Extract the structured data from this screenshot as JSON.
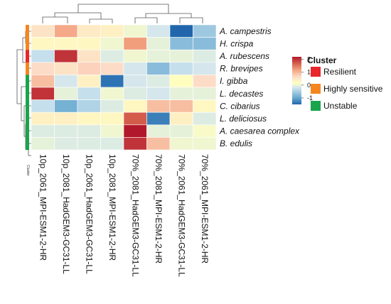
{
  "chart_data": {
    "type": "heatmap",
    "rows": [
      "A. campestris",
      "H. crispa",
      "A. rubescens",
      "R. brevipes",
      "I. gibba",
      "L. decastes",
      "C. cibarius",
      "L. deliciosus",
      "A. caesarea complex",
      "B. edulis"
    ],
    "columns": [
      "10p_2061_MPI-ESM1-2-HR",
      "10p_2081_HadGEM3-GC31-LL",
      "10p_2061_HadGEM3-GC31-LL",
      "10p_2081_MPI-ESM1-2-HR",
      "70%_2081_HadGEM3-GC31-LL",
      "70%_2081_MPI-ESM1-2-HR",
      "70%_2061_HadGEM3-GC31-LL",
      "70%_2061_MPI-ESM1-2-HR"
    ],
    "values": [
      [
        0.5,
        1.1,
        0.4,
        0.3,
        -0.1,
        -0.4,
        -1.6,
        -0.7
      ],
      [
        0.2,
        0.2,
        0.2,
        -0.1,
        1.2,
        -0.2,
        -0.8,
        -0.8
      ],
      [
        -0.5,
        2.0,
        0.5,
        -0.3,
        -0.1,
        -0.2,
        -0.2,
        -0.3
      ],
      [
        0.6,
        0.5,
        0.7,
        0.6,
        -0.4,
        -0.8,
        -0.5,
        -0.4
      ],
      [
        0.9,
        -0.4,
        0.3,
        -1.4,
        -0.4,
        -0.3,
        0.1,
        0.6
      ],
      [
        2.0,
        -0.2,
        -0.5,
        -0.1,
        -0.3,
        -0.4,
        -0.2,
        -0.2
      ],
      [
        -0.5,
        -0.9,
        -0.6,
        -0.3,
        0.2,
        0.9,
        0.9,
        0.2
      ],
      [
        0.3,
        0.3,
        0.2,
        0.2,
        1.7,
        -1.3,
        0.3,
        -0.3
      ],
      [
        -0.3,
        -0.3,
        -0.3,
        -0.1,
        2.2,
        -0.2,
        -0.2,
        0.0
      ],
      [
        -0.2,
        -0.3,
        -0.3,
        -0.3,
        2.0,
        0.9,
        -0.1,
        -0.1
      ]
    ],
    "row_clusters": [
      "Highly sensitive",
      "Highly sensitive",
      "Resilient",
      "Highly sensitive",
      "Unstable",
      "Unstable",
      "Unstable",
      "Unstable",
      "Unstable",
      "Unstable"
    ],
    "color_scale": {
      "ticks": [
        2,
        1,
        0,
        -1
      ],
      "range": [
        -1.5,
        2.2
      ],
      "colors": [
        "#2166ac",
        "#67a9cf",
        "#d1e5f0",
        "#ffffbf",
        "#fddbc7",
        "#f4a582",
        "#d6604d",
        "#b2182b"
      ]
    },
    "legend": {
      "title": "Cluster",
      "entries": [
        {
          "label": "Resilient",
          "color": "#e8262b"
        },
        {
          "label": "Highly sensitive",
          "color": "#f5861f"
        },
        {
          "label": "Unstable",
          "color": "#1aa44c"
        }
      ]
    },
    "annotation_label": "Cluster"
  }
}
